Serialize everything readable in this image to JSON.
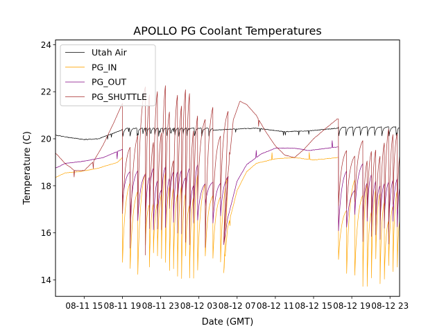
{
  "chart_data": {
    "type": "line",
    "title": "APOLLO PG Coolant Temperatures",
    "xlabel": "Date (GMT)",
    "ylabel": "Temperature (C)",
    "x_unit": "hours since 08-11 12:00 GMT",
    "xlim": [
      0,
      36
    ],
    "ylim": [
      13.3,
      24.2
    ],
    "yticks": [
      14,
      16,
      18,
      20,
      22,
      24
    ],
    "xticks": [
      {
        "x": 3,
        "label": "08-11 15"
      },
      {
        "x": 7,
        "label": "08-11 19"
      },
      {
        "x": 11,
        "label": "08-11 23"
      },
      {
        "x": 15,
        "label": "08-12 03"
      },
      {
        "x": 19,
        "label": "08-12 07"
      },
      {
        "x": 23,
        "label": "08-12 11"
      },
      {
        "x": 27,
        "label": "08-12 15"
      },
      {
        "x": 31,
        "label": "08-12 19"
      },
      {
        "x": 35,
        "label": "08-12 23"
      }
    ],
    "grid": false,
    "legend": {
      "position": "top-left",
      "entries": [
        "Utah Air",
        "PG_IN",
        "PG_OUT",
        "PG_SHUTTLE"
      ]
    },
    "series": [
      {
        "name": "Utah Air",
        "color": "#000000",
        "baseline": [
          [
            0,
            20.15
          ],
          [
            1.5,
            20.05
          ],
          [
            3,
            19.97
          ],
          [
            4.5,
            20.0
          ],
          [
            6.5,
            20.3
          ],
          [
            7,
            20.4
          ],
          [
            12,
            20.35
          ],
          [
            16,
            20.35
          ],
          [
            18,
            20.4
          ],
          [
            21,
            20.45
          ],
          [
            24,
            20.3
          ],
          [
            27,
            20.35
          ],
          [
            29.5,
            20.45
          ],
          [
            31,
            20.45
          ],
          [
            36,
            20.4
          ]
        ],
        "cycling_segments": [
          {
            "start": 7.0,
            "end": 16.5,
            "low": 19.95,
            "high": 20.45
          },
          {
            "start": 29.6,
            "end": 36.0,
            "low": 19.95,
            "high": 20.5
          }
        ]
      },
      {
        "name": "PG_IN",
        "color": "#FFA500",
        "baseline": [
          [
            0,
            18.35
          ],
          [
            1,
            18.55
          ],
          [
            2.5,
            18.6
          ],
          [
            4.5,
            18.75
          ],
          [
            6.5,
            19.0
          ],
          [
            7,
            19.2
          ]
        ],
        "recovery_1": [
          [
            17.6,
            14.3
          ],
          [
            18,
            16.2
          ],
          [
            19,
            17.8
          ],
          [
            20,
            18.6
          ],
          [
            21,
            18.95
          ],
          [
            23,
            19.15
          ],
          [
            25,
            19.2
          ],
          [
            27,
            19.1
          ],
          [
            29.5,
            19.2
          ]
        ],
        "cycling_segments": [
          {
            "start": 7.0,
            "end": 17.6,
            "low_range": [
              13.8,
              15.7
            ],
            "high_range": [
              17.0,
              18.6
            ]
          },
          {
            "start": 29.6,
            "end": 36.0,
            "low_range": [
              13.7,
              15.0
            ],
            "high_range": [
              16.5,
              18.4
            ]
          }
        ]
      },
      {
        "name": "PG_OUT",
        "color": "#800080",
        "baseline": [
          [
            0,
            18.75
          ],
          [
            1,
            18.95
          ],
          [
            3,
            19.05
          ],
          [
            5,
            19.2
          ],
          [
            7,
            19.55
          ]
        ],
        "recovery_1": [
          [
            17.6,
            15.5
          ],
          [
            18,
            16.6
          ],
          [
            19,
            18.2
          ],
          [
            20,
            18.9
          ],
          [
            21.5,
            19.35
          ],
          [
            23,
            19.6
          ],
          [
            25,
            19.6
          ],
          [
            26.5,
            19.5
          ],
          [
            29.5,
            19.65
          ]
        ],
        "cycling_segments": [
          {
            "start": 7.0,
            "end": 17.6,
            "low_range": [
              16.0,
              17.5
            ],
            "high_range": [
              17.8,
              19.1
            ]
          },
          {
            "start": 29.6,
            "end": 36.0,
            "low_range": [
              15.9,
              16.8
            ],
            "high_range": [
              17.8,
              19.0
            ]
          }
        ]
      },
      {
        "name": "PG_SHUTTLE",
        "color": "#A52A2A",
        "baseline": [
          [
            0,
            19.4
          ],
          [
            1,
            18.95
          ],
          [
            2,
            18.65
          ],
          [
            3,
            18.65
          ],
          [
            4,
            19.05
          ],
          [
            5,
            19.75
          ],
          [
            6,
            20.6
          ],
          [
            7,
            21.5
          ]
        ],
        "recovery_1": [
          [
            17.6,
            15.6
          ],
          [
            18,
            18.3
          ],
          [
            18.6,
            20.8
          ],
          [
            19.3,
            21.6
          ],
          [
            20,
            21.45
          ],
          [
            21,
            21.0
          ],
          [
            22,
            20.3
          ],
          [
            23,
            19.7
          ],
          [
            24,
            19.3
          ],
          [
            25,
            19.2
          ],
          [
            26,
            19.55
          ],
          [
            27,
            20.0
          ],
          [
            28,
            20.35
          ],
          [
            29.5,
            20.85
          ]
        ],
        "cycling_segments": [
          {
            "start": 7.0,
            "end": 17.6,
            "low_range": [
              15.0,
              17.5
            ],
            "high_range": [
              19.0,
              22.3
            ]
          },
          {
            "start": 29.6,
            "end": 36.0,
            "low_range": [
              15.5,
              17.8
            ],
            "high_range": [
              19.0,
              20.8
            ]
          }
        ]
      }
    ]
  }
}
